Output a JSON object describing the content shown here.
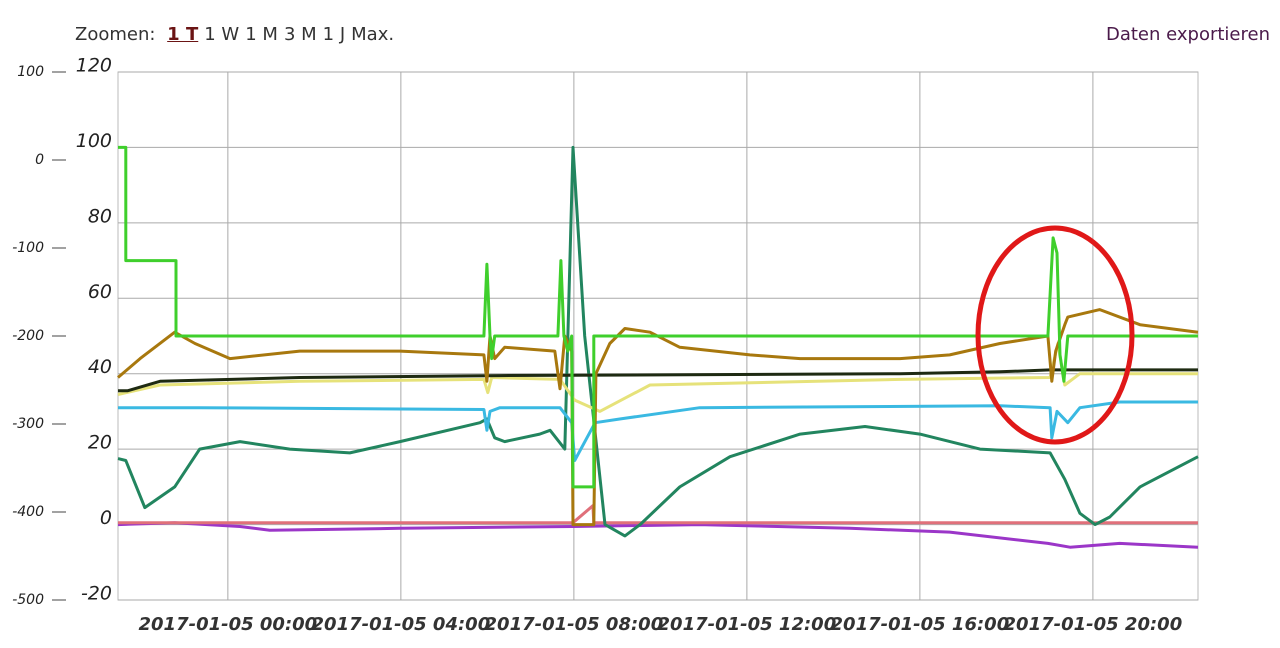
{
  "toolbar": {
    "zoom_label": "Zoomen:",
    "zoom_options": [
      "1 T",
      "1 W",
      "1 M",
      "3 M",
      "1 J",
      "Max."
    ],
    "export": "Daten exportieren"
  },
  "chart_data": {
    "type": "line",
    "grid": true,
    "xlim": [
      -2.54,
      22.43
    ],
    "xticks": [
      {
        "value": 0,
        "label": "2017-01-05 00:00"
      },
      {
        "value": 4,
        "label": "2017-01-05 04:00"
      },
      {
        "value": 8,
        "label": "2017-01-05 08:00"
      },
      {
        "value": 12,
        "label": "2017-01-05 12:00"
      },
      {
        "value": 16,
        "label": "2017-01-05 16:00"
      },
      {
        "value": 20,
        "label": "2017-01-05 20:00"
      }
    ],
    "ylim": [
      -20,
      120
    ],
    "yticks": [
      -20,
      0,
      20,
      40,
      60,
      80,
      100,
      120
    ],
    "y2lim": [
      -500,
      100
    ],
    "y2ticks": [
      -500,
      -400,
      -300,
      -200,
      -100,
      0,
      100
    ],
    "series": [
      {
        "color": "#9b36c8",
        "x": [
          -2.54,
          -1.23,
          0.28,
          0.97,
          3.98,
          7.98,
          10.91,
          14.38,
          16.69,
          18.96,
          19.47,
          20.62,
          22.43
        ],
        "values": [
          0,
          0.5,
          -0.5,
          -1.5,
          -1,
          -0.5,
          0,
          -1,
          -2,
          -5,
          -6,
          -5,
          -6
        ]
      },
      {
        "color": "#e0707a",
        "x": [
          -2.54,
          7.98,
          8.44,
          8.46,
          22.43
        ],
        "values": [
          0.5,
          0.5,
          5,
          0.5,
          0.5
        ]
      },
      {
        "color": "#22855f",
        "x": [
          -2.54,
          -2.36,
          -1.92,
          -1.23,
          -0.65,
          0.28,
          1.43,
          2.82,
          3.98,
          5.83,
          5.99,
          6.17,
          6.4,
          7.21,
          7.45,
          7.79,
          7.98,
          8.25,
          8.72,
          9.18,
          9.53,
          10.45,
          11.61,
          13.23,
          14.73,
          16.0,
          17.39,
          19.01,
          19.35,
          19.7,
          20.05,
          20.39,
          21.09,
          22.43
        ],
        "values": [
          17.5,
          17,
          4.5,
          10,
          20,
          22,
          20,
          19,
          22,
          27,
          28,
          23,
          22,
          24,
          25,
          20,
          100,
          50,
          0,
          -3,
          0,
          10,
          18,
          24,
          26,
          24,
          20,
          19,
          12,
          3,
          0,
          2,
          10,
          18
        ]
      },
      {
        "color": "#3ab9e2",
        "x": [
          -2.54,
          -0.65,
          5.92,
          5.99,
          6.06,
          6.29,
          7.68,
          7.95,
          8.02,
          8.49,
          9.06,
          10.91,
          17.85,
          19.01,
          19.05,
          19.17,
          19.42,
          19.7,
          20.62,
          22.43
        ],
        "values": [
          31,
          31,
          30.5,
          25,
          30,
          31,
          31,
          27,
          17,
          27,
          28,
          31,
          31.5,
          31,
          23,
          30,
          27,
          31,
          32.5,
          32.5
        ]
      },
      {
        "color": "#e6e27a",
        "x": [
          -2.54,
          -1.57,
          1.66,
          5.92,
          6.01,
          6.1,
          7.68,
          8.02,
          8.6,
          9.76,
          15.54,
          19.01,
          19.19,
          19.35,
          19.7,
          22.43
        ],
        "values": [
          34.5,
          37,
          38,
          38.5,
          35,
          39,
          38.5,
          33,
          30,
          37,
          38.5,
          39,
          48,
          37,
          40,
          40
        ]
      },
      {
        "color": "#1e2a12",
        "x": [
          -2.54,
          -2.31,
          -1.57,
          1.66,
          6.29,
          15.54,
          17.85,
          19.01,
          22.43
        ],
        "values": [
          35.5,
          35.5,
          38,
          39,
          39.5,
          40,
          40.5,
          41,
          41
        ]
      },
      {
        "color": "#a8780e",
        "x": [
          -2.54,
          -2.03,
          -1.23,
          -0.76,
          0.05,
          1.66,
          3.98,
          5.92,
          5.99,
          6.06,
          6.17,
          6.4,
          7.56,
          7.68,
          7.79,
          7.95,
          7.98,
          8.46,
          8.51,
          8.83,
          9.18,
          9.76,
          10.45,
          12.07,
          13.23,
          15.54,
          16.69,
          17.85,
          18.96,
          19.05,
          19.14,
          19.35,
          19.42,
          20.16,
          21.09,
          22.43
        ],
        "values": [
          39,
          44,
          51,
          48,
          44,
          46,
          46,
          45,
          38,
          50,
          44,
          47,
          46,
          36,
          50,
          46,
          0,
          0,
          40,
          48,
          52,
          51,
          47,
          45,
          44,
          44,
          45,
          48,
          50,
          38,
          46,
          53,
          55,
          57,
          53,
          51
        ]
      },
      {
        "color": "#3fcf2c",
        "x": [
          -2.54,
          -2.36,
          -2.36,
          -1.2,
          -1.2,
          5.92,
          5.99,
          6.06,
          6.1,
          6.17,
          7.63,
          7.7,
          7.77,
          7.86,
          7.95,
          7.98,
          8.46,
          8.46,
          18.96,
          19.08,
          19.17,
          19.24,
          19.33,
          19.42,
          22.43
        ],
        "values": [
          100,
          100,
          70,
          70,
          50,
          50,
          69,
          50,
          44,
          50,
          50,
          70,
          50,
          46,
          50,
          10,
          10,
          50,
          50,
          76,
          72,
          45,
          38,
          50,
          50
        ]
      }
    ]
  }
}
